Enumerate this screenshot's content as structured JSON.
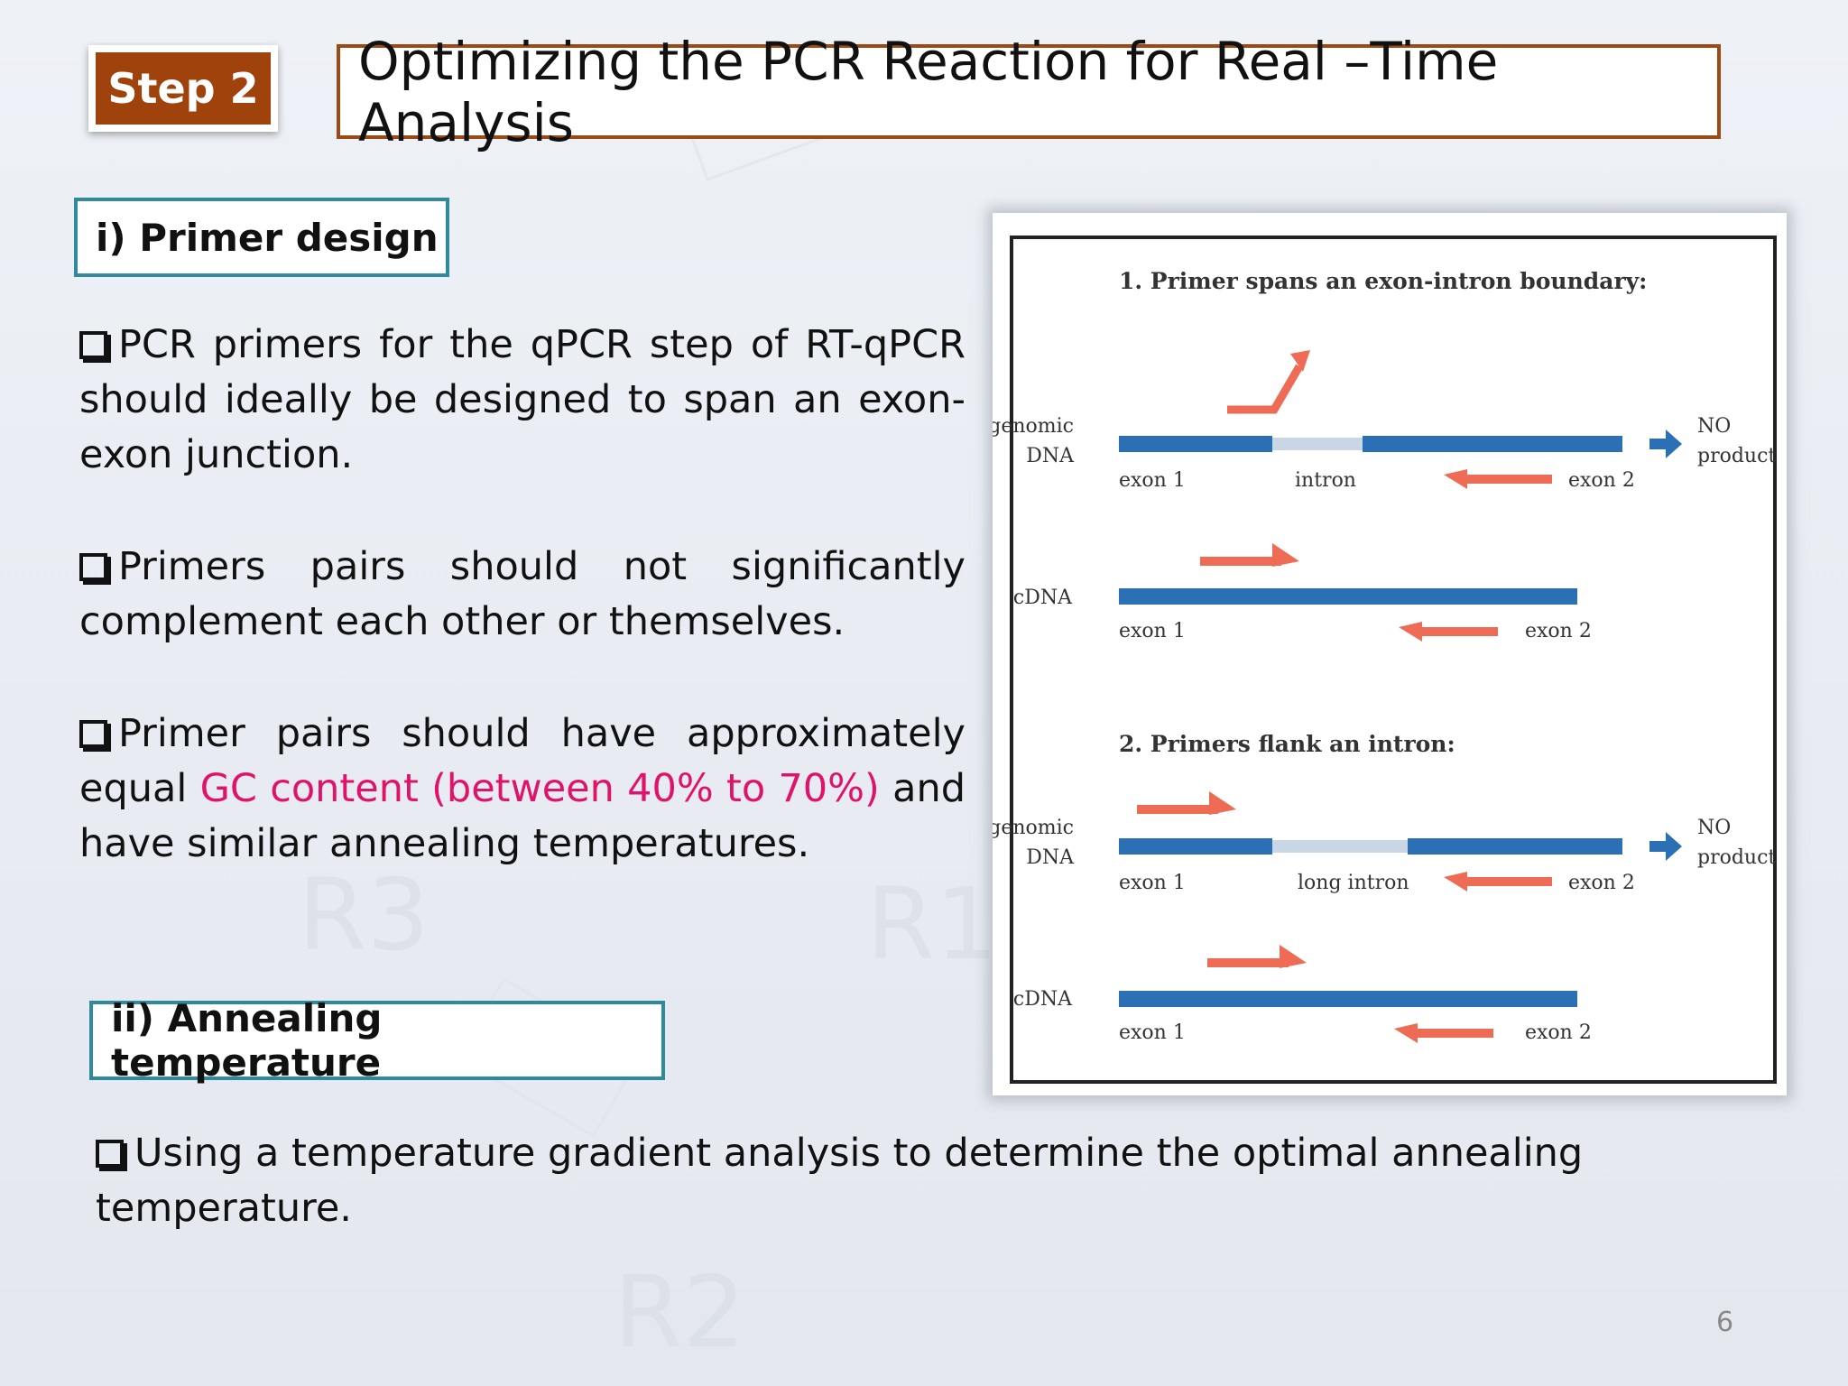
{
  "step_label": "Step 2",
  "title": "Optimizing the PCR Reaction for Real –Time Analysis",
  "section1": {
    "heading": "i) Primer design",
    "bullet1": "PCR primers for the qPCR step of RT-qPCR should ideally be designed to span an exon-exon junction.",
    "bullet2": "Primers pairs should not significantly complement each other or themselves.",
    "bullet3_pre": "Primer pairs should have approximately equal ",
    "bullet3_highlight": "GC content (between 40% to 70%)",
    "bullet3_post": " and have similar annealing temperatures."
  },
  "section2": {
    "heading": "ii) Annealing temperature",
    "bullet1": "Using a temperature gradient analysis to determine the optimal annealing temperature."
  },
  "figure": {
    "panel1_title": "1. Primer spans an exon-intron boundary:",
    "panel2_title": "2. Primers flank an intron:",
    "genomic": "genomic",
    "dna": "DNA",
    "cdna": "cDNA",
    "exon1": "exon 1",
    "exon2": "exon 2",
    "intron": "intron",
    "long_intron": "long intron",
    "no": "NO",
    "product": "product",
    "colors": {
      "dna": "#2b6fb4",
      "intron": "#c9d6e6",
      "primer": "#ee6b55"
    }
  },
  "background_watermark": [
    "R3",
    "R1",
    "R2"
  ],
  "page_number": "6"
}
